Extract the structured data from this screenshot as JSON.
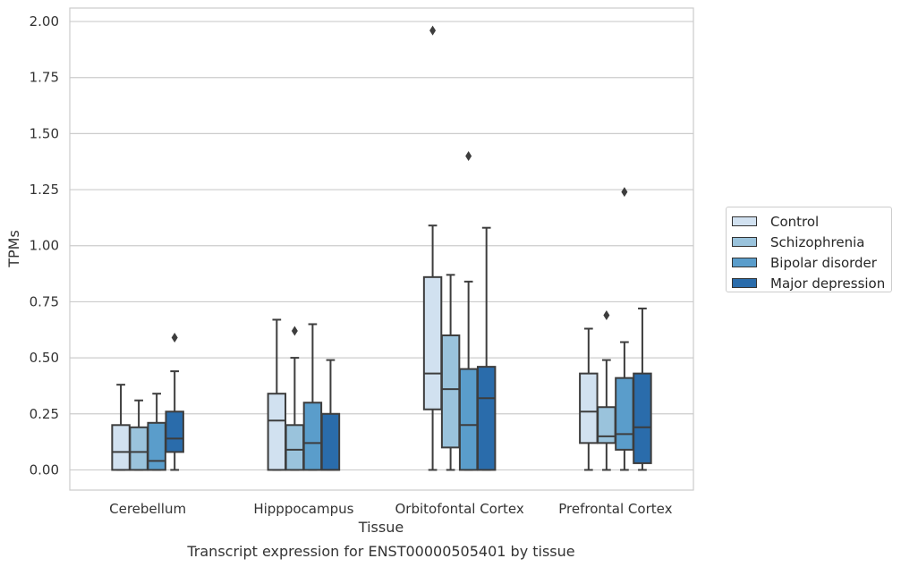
{
  "chart_data": {
    "type": "box",
    "title": "Transcript expression for ENST00000505401 by tissue",
    "xlabel": "Tissue",
    "ylabel": "TPMs",
    "ylim": [
      -0.09,
      2.06
    ],
    "yticks": [
      "0.00",
      "0.25",
      "0.50",
      "0.75",
      "1.00",
      "1.25",
      "1.50",
      "1.75",
      "2.00"
    ],
    "categories": [
      "Cerebellum",
      "Hipppocampus",
      "Orbitofontal Cortex",
      "Prefrontal Cortex"
    ],
    "grid": "horizontal",
    "legend_position": "right",
    "series": [
      {
        "name": "Control",
        "color": "#d1e1f0",
        "boxes": [
          {
            "whislo": 0.0,
            "q1": 0.0,
            "med": 0.08,
            "q3": 0.2,
            "whishi": 0.38,
            "fliers": []
          },
          {
            "whislo": 0.0,
            "q1": 0.0,
            "med": 0.22,
            "q3": 0.34,
            "whishi": 0.67,
            "fliers": []
          },
          {
            "whislo": 0.0,
            "q1": 0.27,
            "med": 0.43,
            "q3": 0.86,
            "whishi": 1.09,
            "fliers": [
              1.96
            ]
          },
          {
            "whislo": 0.0,
            "q1": 0.12,
            "med": 0.26,
            "q3": 0.43,
            "whishi": 0.63,
            "fliers": []
          }
        ]
      },
      {
        "name": "Schizophrenia",
        "color": "#9ac3dc",
        "boxes": [
          {
            "whislo": 0.0,
            "q1": 0.0,
            "med": 0.08,
            "q3": 0.19,
            "whishi": 0.31,
            "fliers": []
          },
          {
            "whislo": 0.0,
            "q1": 0.0,
            "med": 0.09,
            "q3": 0.2,
            "whishi": 0.5,
            "fliers": [
              0.62
            ]
          },
          {
            "whislo": 0.0,
            "q1": 0.1,
            "med": 0.36,
            "q3": 0.6,
            "whishi": 0.87,
            "fliers": []
          },
          {
            "whislo": 0.0,
            "q1": 0.12,
            "med": 0.15,
            "q3": 0.28,
            "whishi": 0.49,
            "fliers": [
              0.69
            ]
          }
        ]
      },
      {
        "name": "Bipolar disorder",
        "color": "#5a9dcb",
        "boxes": [
          {
            "whislo": 0.0,
            "q1": 0.0,
            "med": 0.04,
            "q3": 0.21,
            "whishi": 0.34,
            "fliers": []
          },
          {
            "whislo": 0.0,
            "q1": 0.0,
            "med": 0.12,
            "q3": 0.3,
            "whishi": 0.65,
            "fliers": []
          },
          {
            "whislo": 0.0,
            "q1": 0.0,
            "med": 0.2,
            "q3": 0.45,
            "whishi": 0.84,
            "fliers": [
              1.4
            ]
          },
          {
            "whislo": 0.0,
            "q1": 0.09,
            "med": 0.16,
            "q3": 0.41,
            "whishi": 0.57,
            "fliers": [
              1.24
            ]
          }
        ]
      },
      {
        "name": "Major depression",
        "color": "#2a6cab",
        "boxes": [
          {
            "whislo": 0.0,
            "q1": 0.08,
            "med": 0.14,
            "q3": 0.26,
            "whishi": 0.44,
            "fliers": [
              0.59
            ]
          },
          {
            "whislo": 0.0,
            "q1": 0.0,
            "med": 0.0,
            "q3": 0.25,
            "whishi": 0.49,
            "fliers": []
          },
          {
            "whislo": 0.0,
            "q1": 0.0,
            "med": 0.32,
            "q3": 0.46,
            "whishi": 1.08,
            "fliers": []
          },
          {
            "whislo": 0.0,
            "q1": 0.03,
            "med": 0.19,
            "q3": 0.43,
            "whishi": 0.72,
            "fliers": []
          }
        ]
      }
    ]
  }
}
